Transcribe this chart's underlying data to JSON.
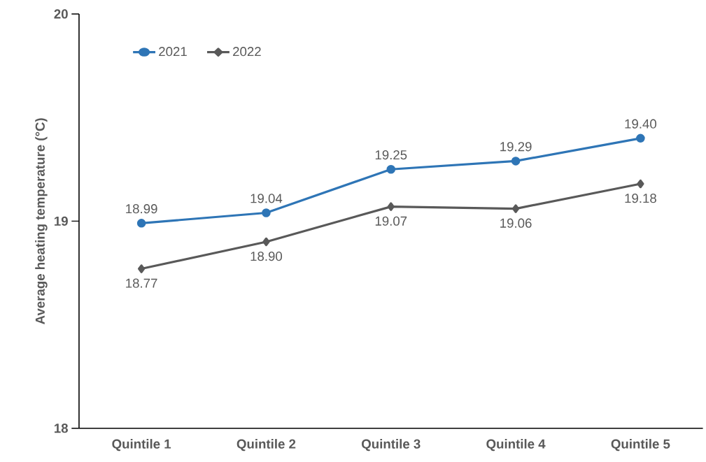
{
  "chart_data": {
    "type": "line",
    "ylabel": "Average heating temperature (°C)",
    "categories": [
      "Quintile 1",
      "Quintile 2",
      "Quintile 3",
      "Quintile 4",
      "Quintile 5"
    ],
    "series": [
      {
        "name": "2021",
        "color": "#2e75b6",
        "marker": "circle",
        "values": [
          18.99,
          19.04,
          19.25,
          19.29,
          19.4
        ],
        "value_labels": [
          "18.99",
          "19.04",
          "19.25",
          "19.29",
          "19.40"
        ]
      },
      {
        "name": "2022",
        "color": "#595959",
        "marker": "diamond",
        "values": [
          18.77,
          18.9,
          19.07,
          19.06,
          19.18
        ],
        "value_labels": [
          "18.77",
          "18.90",
          "19.07",
          "19.06",
          "19.18"
        ]
      }
    ],
    "ylim": [
      18,
      20
    ],
    "yticks": [
      18,
      19,
      20
    ],
    "grid": false,
    "legend": "top left",
    "line_style": "solid"
  }
}
